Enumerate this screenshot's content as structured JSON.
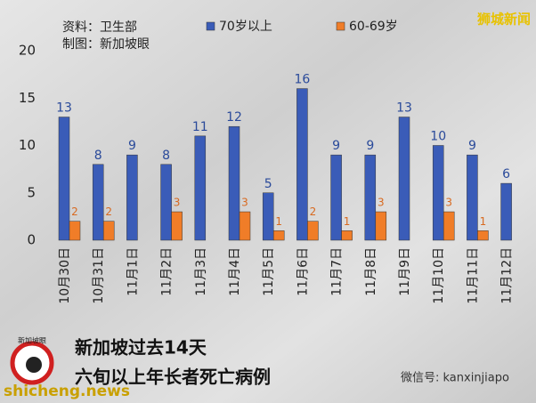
{
  "chart_data": {
    "type": "bar",
    "title": "新加坡过去14天",
    "subtitle": "六旬以上年长者死亡病例",
    "source": "资料：卫生部",
    "credit": "制图：新加坡眼",
    "categories": [
      "10月30日",
      "10月31日",
      "11月1日",
      "11月2日",
      "11月3日",
      "11月4日",
      "11月5日",
      "11月6日",
      "11月7日",
      "11月8日",
      "11月9日",
      "11月10日",
      "11月11日",
      "11月12日"
    ],
    "series": [
      {
        "name": "70岁以上",
        "color": "#3a5cb8",
        "values": [
          13,
          8,
          9,
          8,
          11,
          12,
          5,
          16,
          9,
          9,
          13,
          10,
          9,
          6
        ]
      },
      {
        "name": "60-69岁",
        "color": "#f07d28",
        "values": [
          2,
          2,
          null,
          3,
          null,
          3,
          1,
          2,
          1,
          3,
          null,
          3,
          1,
          null
        ]
      }
    ],
    "ylim": [
      0,
      20
    ],
    "yticks": [
      0,
      5,
      10,
      15,
      20
    ],
    "grid": false
  },
  "branding": {
    "corner": "狮城新闻",
    "logo": "新加坡眼",
    "wechat": "微信号: kanxinjiapo",
    "site": "shicheng.news"
  }
}
